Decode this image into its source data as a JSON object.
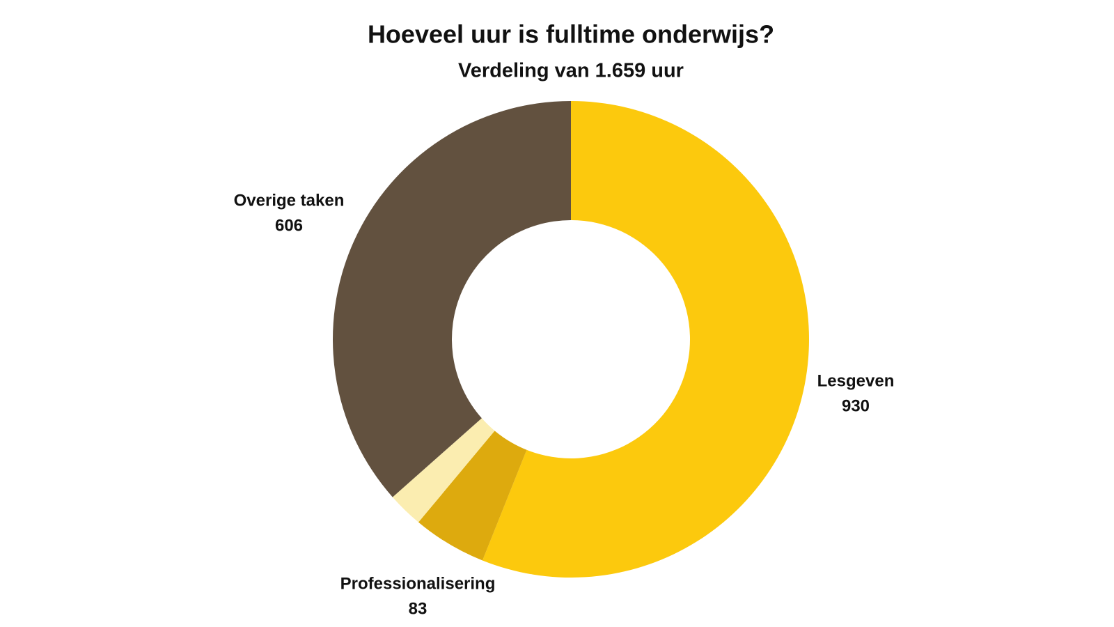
{
  "chart_data": {
    "type": "donut",
    "title": "Hoeveel uur is fulltime onderwijs?",
    "subtitle": "Verdeling van 1.659 uur",
    "categories": [
      "Lesgeven",
      "Professionalisering",
      null,
      "Overige taken"
    ],
    "values": [
      930,
      83,
      40,
      606
    ],
    "colors": [
      "#fcc90d",
      "#ddaa0e",
      "#fbedb0",
      "#62513f"
    ]
  }
}
